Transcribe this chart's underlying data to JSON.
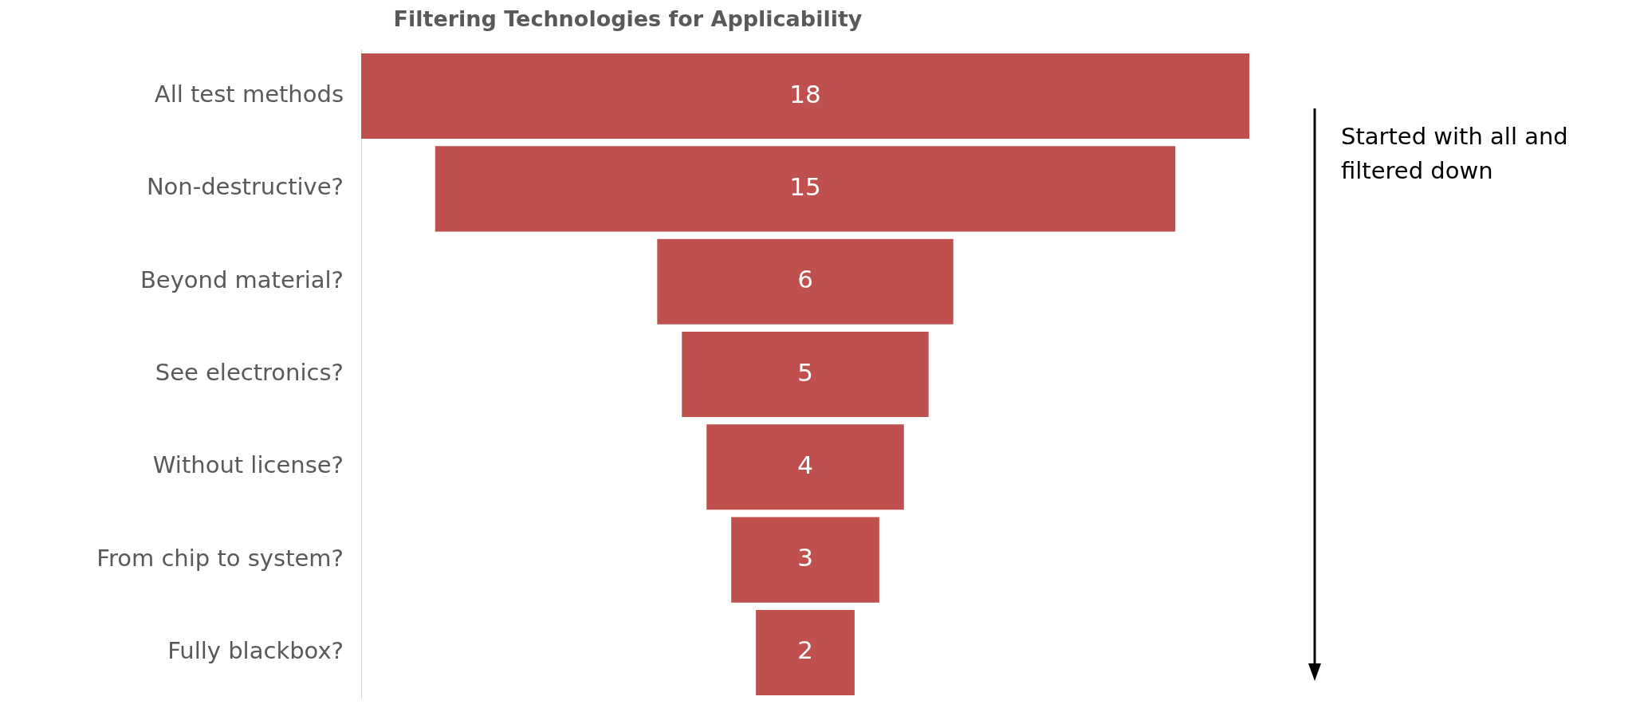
{
  "chart_data": {
    "type": "other",
    "title": "Filtering Technologies for Applicability",
    "categories": [
      "All test methods",
      "Non-destructive?",
      "Beyond material?",
      "See electronics?",
      "Without license?",
      "From chip to system?",
      "Fully blackbox?"
    ],
    "values": [
      18,
      15,
      6,
      5,
      4,
      3,
      2
    ],
    "color": "#c0504d",
    "data_labels": true,
    "annotations": [
      "Started with all and filtered down"
    ]
  }
}
